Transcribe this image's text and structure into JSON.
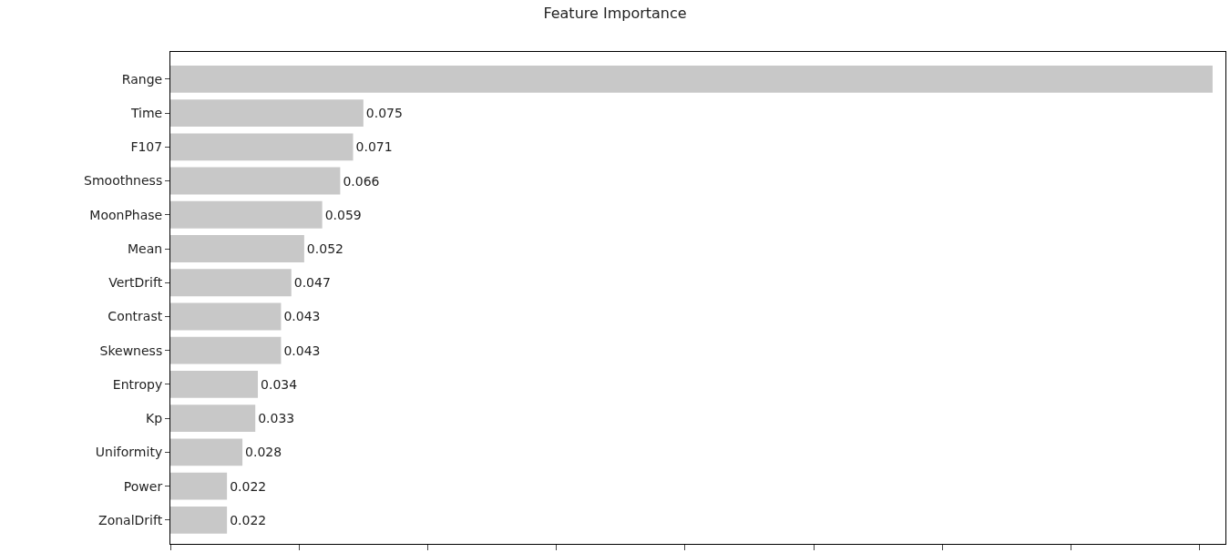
{
  "chart_data": {
    "type": "bar",
    "orientation": "horizontal",
    "title": "Feature Importance",
    "categories": [
      "Range",
      "Time",
      "F107",
      "Smoothness",
      "MoonPhase",
      "Mean",
      "VertDrift",
      "Contrast",
      "Skewness",
      "Entropy",
      "Kp",
      "Uniformity",
      "Power",
      "ZonalDrift"
    ],
    "values": [
      0.405,
      0.075,
      0.071,
      0.066,
      0.059,
      0.052,
      0.047,
      0.043,
      0.043,
      0.034,
      0.033,
      0.028,
      0.022,
      0.022
    ],
    "value_labels": [
      null,
      "0.075",
      "0.071",
      "0.066",
      "0.059",
      "0.052",
      "0.047",
      "0.043",
      "0.043",
      "0.034",
      "0.033",
      "0.028",
      "0.022",
      "0.022"
    ],
    "color": "#c8c8c8",
    "xlim": [
      0,
      0.41
    ],
    "xticks": [
      {
        "value": 0,
        "label": null
      },
      {
        "value": 0.05,
        "label": null
      },
      {
        "value": 0.1,
        "label": null
      },
      {
        "value": 0.15,
        "label": null
      },
      {
        "value": 0.2,
        "label": null
      },
      {
        "value": 0.25,
        "label": null
      },
      {
        "value": 0.3,
        "label": null
      },
      {
        "value": 0.35,
        "label": null
      },
      {
        "value": 0.4,
        "label": null
      }
    ],
    "tick_labels": "y",
    "grid": false,
    "legend": false
  }
}
